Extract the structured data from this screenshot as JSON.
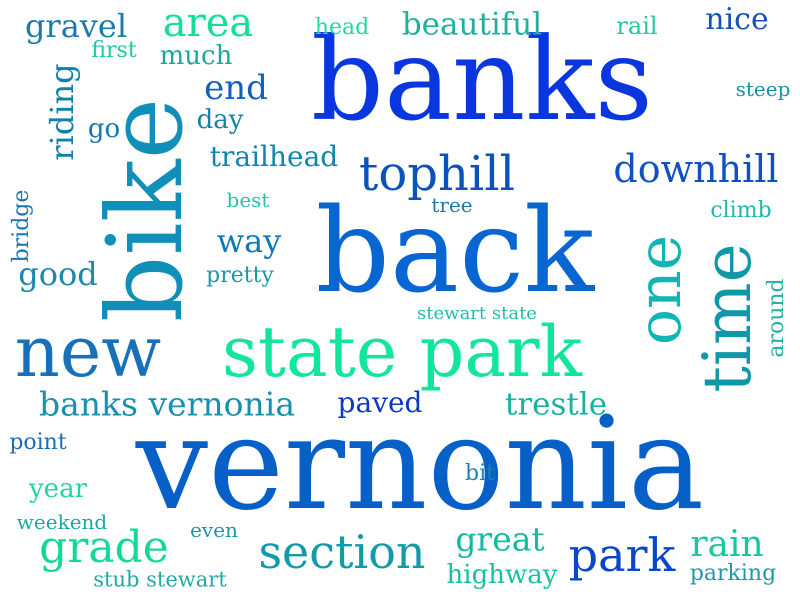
{
  "words": [
    {
      "text": "vernonia",
      "color": "#0660c8"
    },
    {
      "text": "banks",
      "color": "#0a36e0"
    },
    {
      "text": "back",
      "color": "#0766d2"
    },
    {
      "text": "bike",
      "color": "#1090b8"
    },
    {
      "text": "state park",
      "color": "#12e69a"
    },
    {
      "text": "new",
      "color": "#1870b8"
    },
    {
      "text": "time",
      "color": "#1198a8"
    },
    {
      "text": "one",
      "color": "#12b4b4"
    },
    {
      "text": "tophill",
      "color": "#0c52bc"
    },
    {
      "text": "downhill",
      "color": "#1050c4"
    },
    {
      "text": "section",
      "color": "#119aa8"
    },
    {
      "text": "grade",
      "color": "#14d898"
    },
    {
      "text": "park",
      "color": "#0a46cc"
    },
    {
      "text": "banks vernonia",
      "color": "#1890b0"
    },
    {
      "text": "area",
      "color": "#12e098"
    },
    {
      "text": "gravel",
      "color": "#1b7aaa"
    },
    {
      "text": "beautiful",
      "color": "#1fb09e"
    },
    {
      "text": "nice",
      "color": "#1452b4"
    },
    {
      "text": "end",
      "color": "#1060bc"
    },
    {
      "text": "riding",
      "color": "#1080ac"
    },
    {
      "text": "trailhead",
      "color": "#1086ac"
    },
    {
      "text": "trestle",
      "color": "#18b29e"
    },
    {
      "text": "great",
      "color": "#16b8a0"
    },
    {
      "text": "rain",
      "color": "#16c8a0"
    },
    {
      "text": "way",
      "color": "#0f78b8"
    },
    {
      "text": "good",
      "color": "#1c88aa"
    },
    {
      "text": "paved",
      "color": "#0e38c4"
    },
    {
      "text": "highway",
      "color": "#18c0a2"
    },
    {
      "text": "much",
      "color": "#18a8a0"
    },
    {
      "text": "go",
      "color": "#1776b2"
    },
    {
      "text": "day",
      "color": "#1a82aa"
    },
    {
      "text": "first",
      "color": "#1ec8a4"
    },
    {
      "text": "head",
      "color": "#24d8a4"
    },
    {
      "text": "rail",
      "color": "#22c8a8"
    },
    {
      "text": "steep",
      "color": "#1c90aa"
    },
    {
      "text": "best",
      "color": "#24c4aa"
    },
    {
      "text": "tree",
      "color": "#1e78b0"
    },
    {
      "text": "climb",
      "color": "#20b8a8"
    },
    {
      "text": "bridge",
      "color": "#1c74b0"
    },
    {
      "text": "pretty",
      "color": "#1c98a8"
    },
    {
      "text": "stewart state",
      "color": "#24bca8"
    },
    {
      "text": "around",
      "color": "#22b0a8"
    },
    {
      "text": "point",
      "color": "#1d6cb4"
    },
    {
      "text": "year",
      "color": "#22d4a0"
    },
    {
      "text": "bit",
      "color": "#1c80b0"
    },
    {
      "text": "weekend",
      "color": "#1aa8a4"
    },
    {
      "text": "even",
      "color": "#1b94ae"
    },
    {
      "text": "stub stewart",
      "color": "#22a8a8"
    },
    {
      "text": "parking",
      "color": "#1c9aac"
    }
  ]
}
